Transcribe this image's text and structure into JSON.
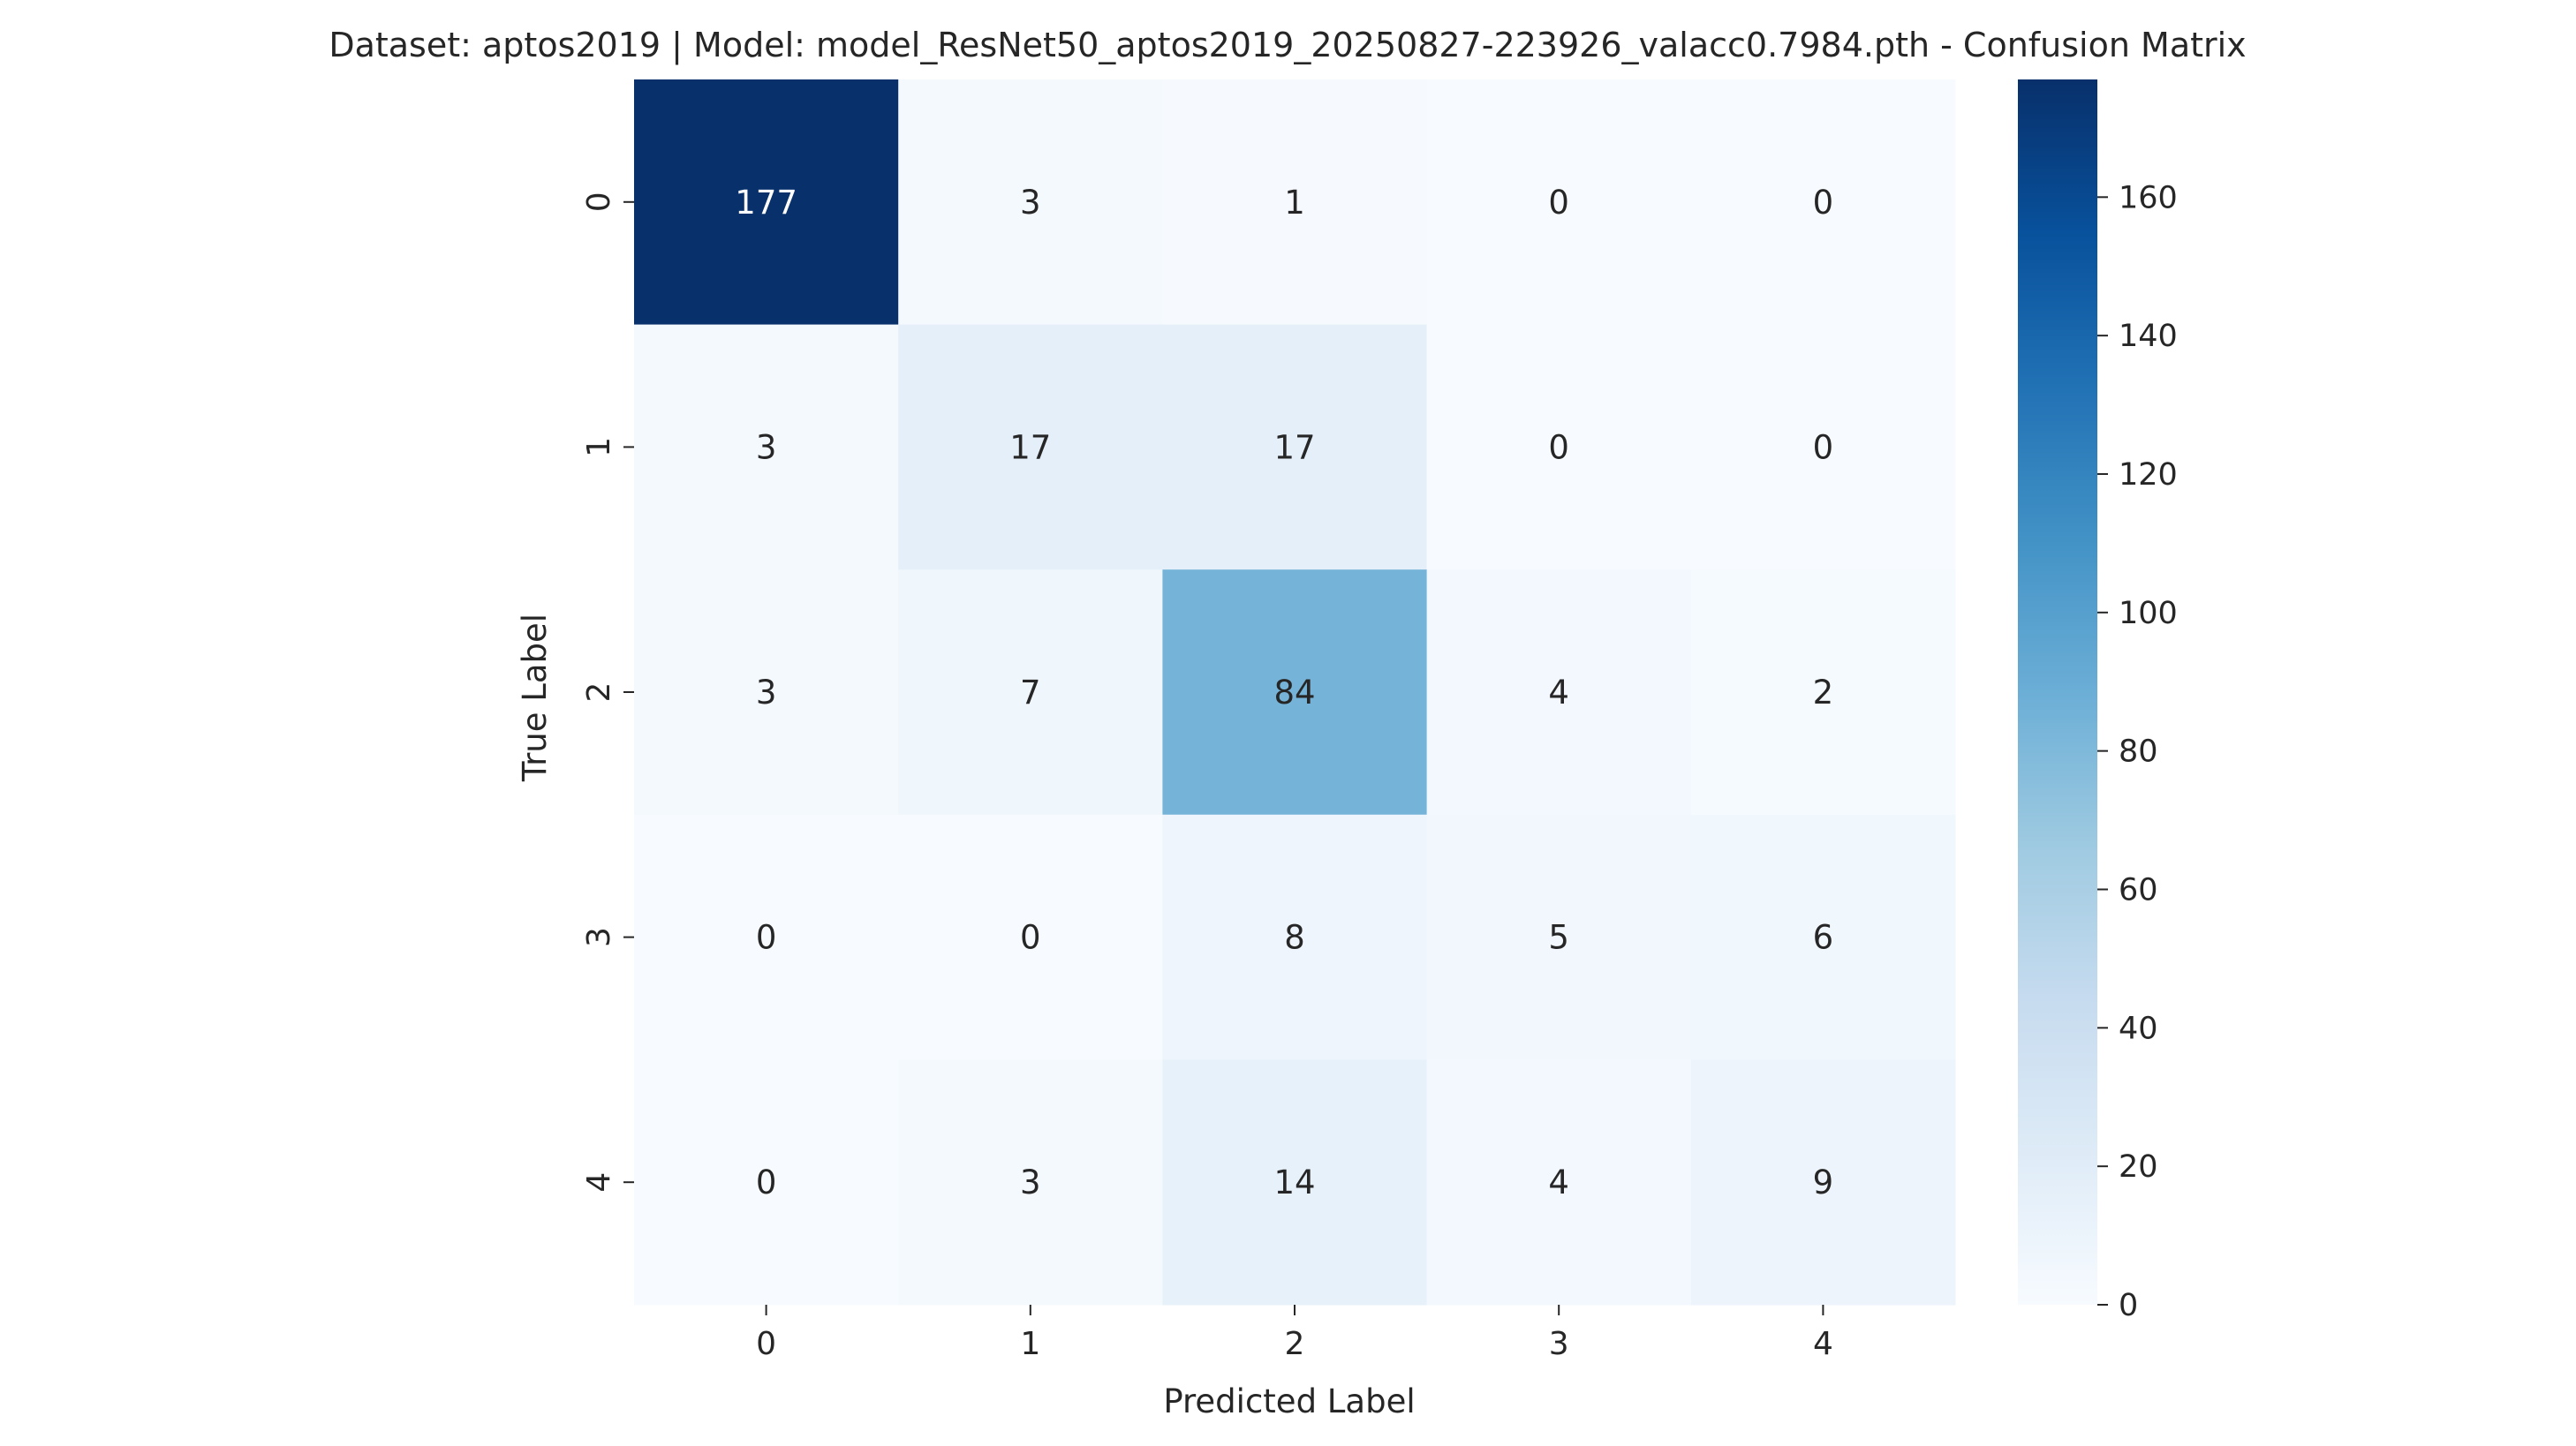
{
  "chart_data": {
    "type": "heatmap",
    "title": "Dataset: aptos2019 | Model: model_ResNet50_aptos2019_20250827-223926_valacc0.7984.pth - Confusion Matrix",
    "xlabel": "Predicted Label",
    "ylabel": "True Label",
    "x_categories": [
      "0",
      "1",
      "2",
      "3",
      "4"
    ],
    "y_categories": [
      "0",
      "1",
      "2",
      "3",
      "4"
    ],
    "values": [
      [
        177,
        3,
        1,
        0,
        0
      ],
      [
        3,
        17,
        17,
        0,
        0
      ],
      [
        3,
        7,
        84,
        4,
        2
      ],
      [
        0,
        0,
        8,
        5,
        6
      ],
      [
        0,
        3,
        14,
        4,
        9
      ]
    ],
    "colormap": "Blues",
    "colorbar": {
      "vmin": 0,
      "vmax": 177,
      "ticks": [
        0,
        20,
        40,
        60,
        80,
        100,
        120,
        140,
        160
      ]
    }
  }
}
